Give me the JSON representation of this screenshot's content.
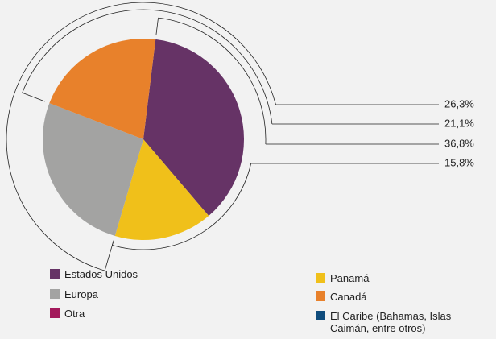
{
  "chart_data": {
    "type": "pie",
    "categories": [
      "Estados Unidos",
      "Europa",
      "Otra",
      "Panamá",
      "Canadá",
      "El Caribe (Bahamas, Islas Caimán, entre otros)"
    ],
    "values": [
      36.8,
      26.3,
      0,
      15.8,
      21.1,
      0
    ],
    "value_labels": [
      "36,8%",
      "26,3%",
      null,
      "15,8%",
      "21,1%",
      null
    ],
    "colors": [
      "#663366",
      "#a3a3a2",
      "#a3195b",
      "#f0c01a",
      "#e8812b",
      "#0f4c7c"
    ]
  }
}
